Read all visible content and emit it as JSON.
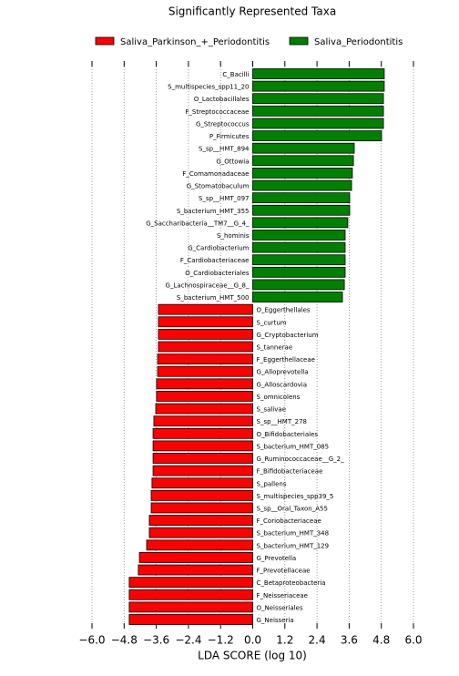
{
  "chart_data": {
    "type": "bar",
    "orientation": "horizontal",
    "title": "Significantly Represented Taxa",
    "xlabel": "LDA SCORE (log 10)",
    "xlim": [
      -6,
      6
    ],
    "xticks": [
      {
        "value": -6,
        "label": "−6.0"
      },
      {
        "value": -4.8,
        "label": "−4.8"
      },
      {
        "value": -3.6,
        "label": "−3.6"
      },
      {
        "value": -2.4,
        "label": "−2.4"
      },
      {
        "value": -1.2,
        "label": "−1.2"
      },
      {
        "value": 0,
        "label": "0.0"
      },
      1.2,
      2.4,
      3.6,
      4.8,
      {
        "value": 6,
        "label": "6.0"
      }
    ],
    "grid": true,
    "series": [
      {
        "name": "Saliva_Parkinson_+_Periodontitis",
        "color": "#ff0000",
        "categories": [
          "O_Eggerthellales",
          "S_curtum",
          "G_Cryptobacterium",
          "S_tannerae",
          "F_Eggerthellaceae",
          "G_Alloprevotella",
          "G_Alloscardovia",
          "S_omnicolens",
          "S_salivae",
          "S_sp__HMT_278",
          "O_Bifidobacteriales",
          "S_bacterium_HMT_085",
          "G_Ruminococcaceae__G_2_",
          "F_Bifidobacteriaceae",
          "S_pallens",
          "S_multispecies_spp39_5",
          "S_sp__Oral_Taxon_A55",
          "F_Coriobacteriaceae",
          "S_bacterium_HMT_348",
          "S_bacterium_HMT_129",
          "G_Prevotella",
          "F_Prevotellaceae",
          "C_Betaproteobacteria",
          "F_Neisseriaceae",
          "O_Neisseriales",
          "G_Neisseria"
        ],
        "values": [
          -3.52,
          -3.52,
          -3.52,
          -3.52,
          -3.55,
          -3.55,
          -3.59,
          -3.59,
          -3.62,
          -3.69,
          -3.72,
          -3.72,
          -3.72,
          -3.72,
          -3.76,
          -3.79,
          -3.79,
          -3.86,
          -3.86,
          -3.96,
          -4.23,
          -4.27,
          -4.61,
          -4.61,
          -4.61,
          -4.61
        ]
      },
      {
        "name": "Saliva_Periodontitis",
        "color": "#008000",
        "categories": [
          "C_Bacilli",
          "S_multispecies_spp11_20",
          "O_Lactobacillales",
          "F_Streptococcaceae",
          "G_Streptococcus",
          "P_Firmicutes",
          "S_sp__HMT_894",
          "G_Ottowia",
          "F_Comamonadaceae",
          "G_Stomatobaculum",
          "S_sp__HMT_097",
          "S_bacterium_HMT_355",
          "G_Saccharibacteria__TM7__G_4_",
          "S_hominis",
          "G_Cardiobacterium",
          "F_Cardiobacteriaceae",
          "O_Cardiobacteriales",
          "G_Lachnospiraceae__G_8_",
          "S_bacterium_HMT_500"
        ],
        "values": [
          4.91,
          4.91,
          4.88,
          4.88,
          4.88,
          4.81,
          3.79,
          3.76,
          3.72,
          3.69,
          3.62,
          3.62,
          3.55,
          3.45,
          3.45,
          3.45,
          3.45,
          3.42,
          3.35
        ]
      }
    ]
  }
}
